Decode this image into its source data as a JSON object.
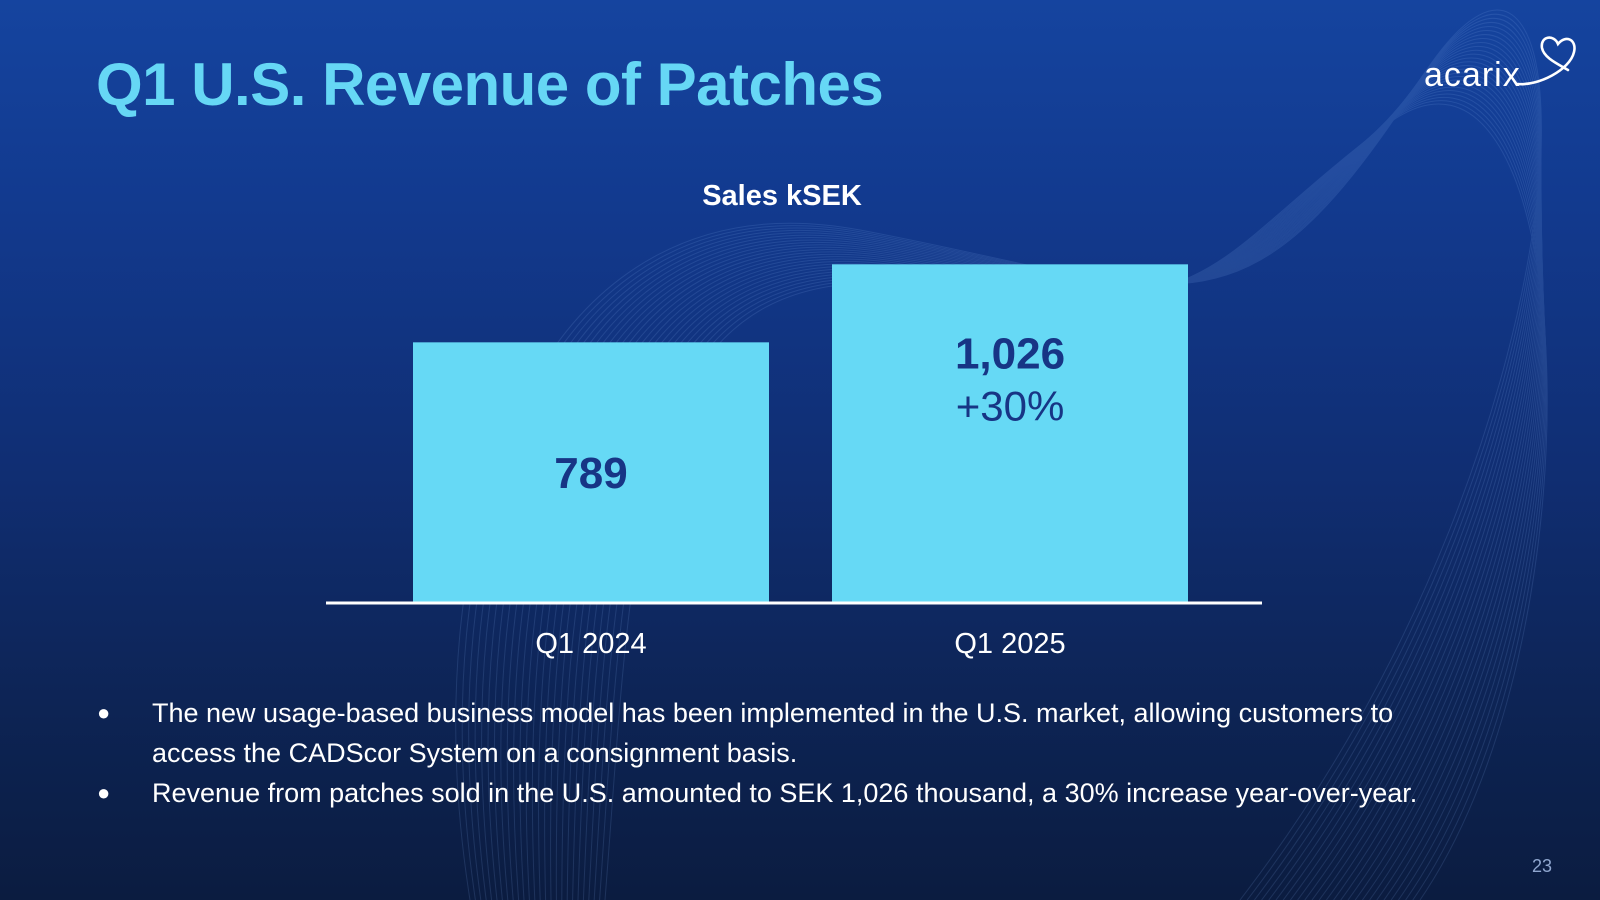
{
  "slide": {
    "title": "Q1 U.S. Revenue of Patches",
    "logo_text": "acarix",
    "page_number": "23"
  },
  "chart_data": {
    "type": "bar",
    "title": "Sales kSEK",
    "categories": [
      "Q1 2024",
      "Q1 2025"
    ],
    "values": [
      789,
      1026
    ],
    "data_labels": [
      "789",
      "1,026"
    ],
    "annotations": [
      "",
      "+30%"
    ],
    "ylim": [
      0,
      1580
    ],
    "grid": false,
    "bar_color": "#66d9f5",
    "label_color": "#173585"
  },
  "bullets": [
    "The new usage-based business model has been implemented in the U.S. market, allowing customers to access the CADScor System on a consignment basis.",
    "Revenue from patches sold in the U.S. amounted to SEK 1,026 thousand, a 30% increase year-over-year."
  ],
  "bullet_symbol": "●",
  "colors": {
    "title": "#66d7f5",
    "background_top": "#15449f",
    "background_bottom": "#0b1c40",
    "text": "#ffffff"
  }
}
